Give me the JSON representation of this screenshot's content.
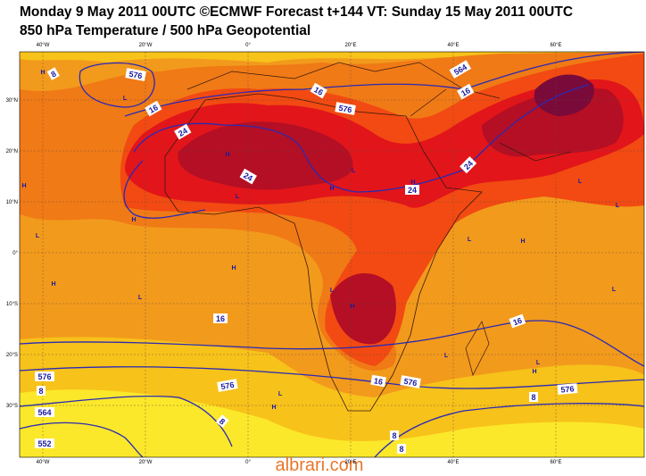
{
  "title": "Monday 9 May 2011 00UTC ©ECMWF Forecast t+144 VT: Sunday 15 May 2011 00UTC",
  "subtitle": "850 hPa Temperature / 500 hPa Geopotential",
  "longitudes": [
    {
      "value": -40,
      "label": "40°W"
    },
    {
      "value": -20,
      "label": "20°W"
    },
    {
      "value": 0,
      "label": "0°"
    },
    {
      "value": 20,
      "label": "20°E"
    },
    {
      "value": 40,
      "label": "40°E"
    },
    {
      "value": 60,
      "label": "60°E"
    }
  ],
  "latitudes": [
    {
      "value": 30,
      "label": "30°N"
    },
    {
      "value": 20,
      "label": "20°N"
    },
    {
      "value": 10,
      "label": "10°N"
    },
    {
      "value": 0,
      "label": "0°"
    },
    {
      "value": -10,
      "label": "10°S"
    },
    {
      "value": -20,
      "label": "20°S"
    },
    {
      "value": -30,
      "label": "30°S"
    }
  ],
  "contour_labels": [
    "8",
    "576",
    "16",
    "24",
    "16",
    "576",
    "564",
    "16",
    "24",
    "24",
    "24",
    "16",
    "16",
    "8",
    "576",
    "564",
    "552",
    "8",
    "576",
    "16",
    "576",
    "8",
    "576",
    "8",
    "8"
  ],
  "pressure_centers": [
    "H",
    "L",
    "H",
    "L",
    "H",
    "H",
    "L",
    "H",
    "L",
    "H",
    "L",
    "H",
    "H",
    "H",
    "L",
    "L",
    "L",
    "L",
    "L",
    "H",
    "L",
    "H",
    "L",
    "H",
    "L"
  ],
  "watermark": "albrari.com"
}
